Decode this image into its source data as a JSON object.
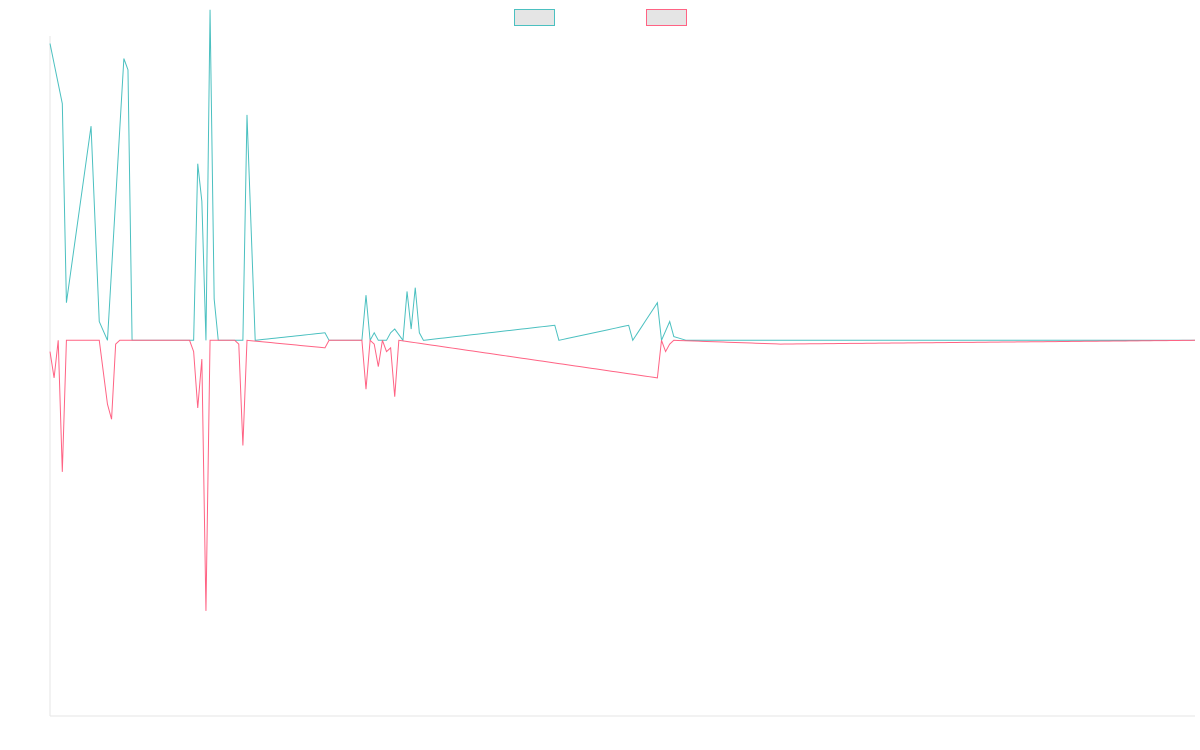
{
  "chart_data": {
    "type": "line",
    "title": "",
    "xlabel": "",
    "ylabel": "",
    "ylim": [
      -100,
      81
    ],
    "grid": false,
    "legend_position": "top-center",
    "x_count": 280,
    "series": [
      {
        "color": "#4bc0c0",
        "fill": "#e5e5e5",
        "points": [
          [
            0,
            79
          ],
          [
            3,
            63
          ],
          [
            4,
            10
          ],
          [
            10,
            57
          ],
          [
            12,
            5
          ],
          [
            14,
            0
          ],
          [
            18,
            75
          ],
          [
            19,
            72
          ],
          [
            20,
            0
          ],
          [
            34,
            0
          ],
          [
            35,
            0
          ],
          [
            36,
            47
          ],
          [
            37,
            37
          ],
          [
            38,
            0
          ],
          [
            39,
            88
          ],
          [
            40,
            11
          ],
          [
            41,
            0
          ],
          [
            45,
            0
          ],
          [
            46,
            0
          ],
          [
            47,
            0
          ],
          [
            48,
            60
          ],
          [
            50,
            0
          ],
          [
            67,
            2
          ],
          [
            68,
            0
          ],
          [
            76,
            0
          ],
          [
            77,
            12
          ],
          [
            78,
            0
          ],
          [
            79,
            2
          ],
          [
            80,
            0
          ],
          [
            81,
            0
          ],
          [
            82,
            0
          ],
          [
            83,
            2
          ],
          [
            84,
            3
          ],
          [
            86,
            0
          ],
          [
            87,
            13
          ],
          [
            88,
            3
          ],
          [
            89,
            14
          ],
          [
            90,
            2
          ],
          [
            91,
            0
          ],
          [
            123,
            4
          ],
          [
            124,
            0
          ],
          [
            141,
            4
          ],
          [
            142,
            0
          ],
          [
            148,
            10
          ],
          [
            149,
            0
          ],
          [
            151,
            5
          ],
          [
            152,
            1
          ],
          [
            155,
            0
          ],
          [
            178,
            0
          ],
          [
            279,
            0
          ]
        ]
      },
      {
        "color": "#ff6384",
        "fill": "#e5e5e5",
        "points": [
          [
            0,
            -3
          ],
          [
            1,
            -10
          ],
          [
            2,
            0
          ],
          [
            3,
            -35
          ],
          [
            4,
            0
          ],
          [
            12,
            0
          ],
          [
            14,
            -17
          ],
          [
            15,
            -21
          ],
          [
            16,
            -1
          ],
          [
            17,
            0
          ],
          [
            34,
            0
          ],
          [
            35,
            -3
          ],
          [
            36,
            -18
          ],
          [
            37,
            -5
          ],
          [
            38,
            -72
          ],
          [
            39,
            0
          ],
          [
            45,
            0
          ],
          [
            46,
            -1
          ],
          [
            47,
            -28
          ],
          [
            48,
            0
          ],
          [
            67,
            -2
          ],
          [
            68,
            0
          ],
          [
            76,
            0
          ],
          [
            77,
            -13
          ],
          [
            78,
            0
          ],
          [
            79,
            -1
          ],
          [
            80,
            -7
          ],
          [
            81,
            0
          ],
          [
            82,
            -3
          ],
          [
            83,
            -2
          ],
          [
            84,
            -15
          ],
          [
            85,
            0
          ],
          [
            148,
            -10
          ],
          [
            149,
            0
          ],
          [
            150,
            -3
          ],
          [
            151,
            -1
          ],
          [
            152,
            0
          ],
          [
            178,
            -1
          ],
          [
            279,
            0
          ]
        ]
      }
    ]
  }
}
